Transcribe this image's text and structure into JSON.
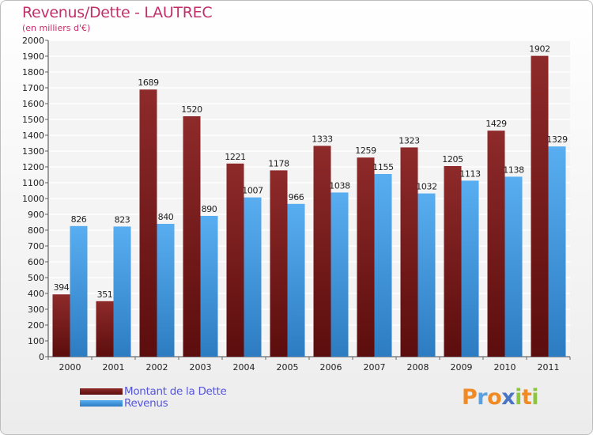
{
  "chart_data": {
    "type": "bar",
    "title": "Revenus/Dette - LAUTREC",
    "subtitle": "(en milliers d'€)",
    "categories": [
      "2000",
      "2001",
      "2002",
      "2003",
      "2004",
      "2005",
      "2006",
      "2007",
      "2008",
      "2009",
      "2010",
      "2011"
    ],
    "series": [
      {
        "name": "Montant de la Dette",
        "color": "#7a1a1a",
        "values": [
          394,
          351,
          1689,
          1520,
          1221,
          1178,
          1333,
          1259,
          1323,
          1205,
          1429,
          1902
        ]
      },
      {
        "name": "Revenus",
        "color": "#4aa3e8",
        "values": [
          826,
          823,
          840,
          890,
          1007,
          966,
          1038,
          1155,
          1032,
          1113,
          1138,
          1329
        ]
      }
    ],
    "ylim": [
      0,
      2000
    ],
    "ytick_step": 100,
    "grid": true,
    "legend": "bottom-left"
  },
  "logo": {
    "letters": [
      {
        "ch": "P",
        "color": "#f08a24"
      },
      {
        "ch": "r",
        "color": "#5aa0e0"
      },
      {
        "ch": "o",
        "color": "#f08a24"
      },
      {
        "ch": "x",
        "color": "#4a74c4"
      },
      {
        "ch": "i",
        "color": "#8cc63f"
      },
      {
        "ch": "t",
        "color": "#f08a24"
      },
      {
        "ch": "i",
        "color": "#8cc63f"
      }
    ]
  }
}
